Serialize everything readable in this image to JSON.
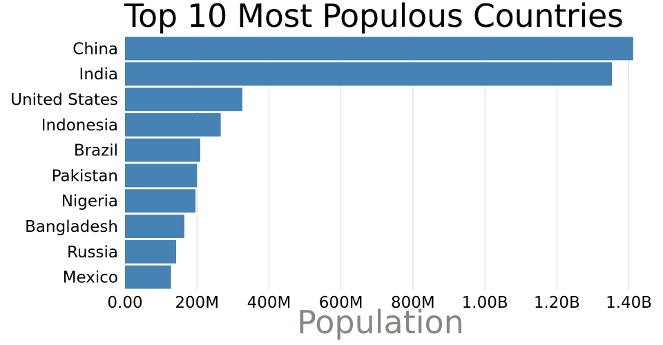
{
  "chart_data": {
    "type": "bar",
    "orientation": "horizontal",
    "title": "Top 10 Most Populous Countries",
    "xlabel": "Population",
    "ylabel": "",
    "categories": [
      "China",
      "India",
      "United States",
      "Indonesia",
      "Brazil",
      "Pakistan",
      "Nigeria",
      "Bangladesh",
      "Russia",
      "Mexico"
    ],
    "values": [
      1412000000,
      1353000000,
      326000000,
      266000000,
      209000000,
      200000000,
      196000000,
      165000000,
      142000000,
      128000000
    ],
    "xlim": [
      0,
      1420000000
    ],
    "xticks": [
      0,
      200000000,
      400000000,
      600000000,
      800000000,
      1000000000,
      1200000000,
      1400000000
    ],
    "xtick_labels": [
      "0.00",
      "200M",
      "400M",
      "600M",
      "800M",
      "1.00B",
      "1.20B",
      "1.40B"
    ],
    "grid": true,
    "colors": {
      "bar": "#4682b4",
      "grid": "#d4d4d4",
      "axis_title": "#8a8580"
    }
  }
}
